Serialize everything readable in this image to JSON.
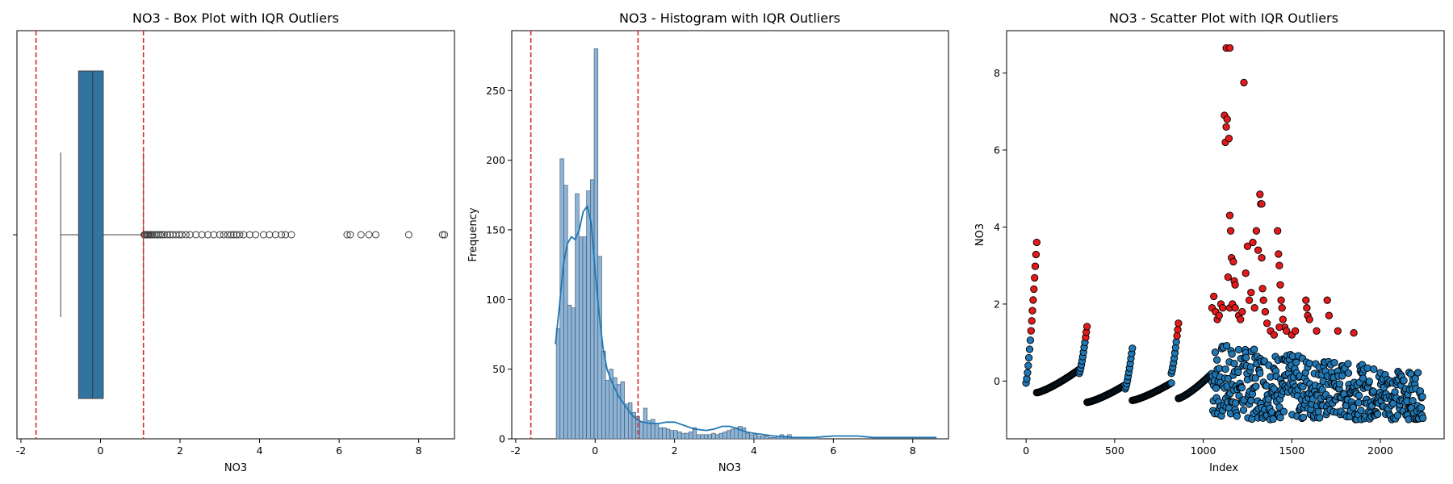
{
  "chart_data": [
    {
      "type": "box",
      "title": "NO3 - Box Plot with IQR Outliers",
      "xlabel": "NO3",
      "ylabel": "",
      "xlim": [
        -2.1,
        8.9
      ],
      "xticks": [
        -2,
        0,
        2,
        4,
        6,
        8
      ],
      "box": {
        "whisker_low": -1.0,
        "q1": -0.55,
        "median": -0.2,
        "q3": 0.07,
        "whisker_high": 1.08
      },
      "iqr_bounds": {
        "lower": -1.62,
        "upper": 1.08,
        "color": "#d62728"
      },
      "box_color": "#3274a1",
      "outliers": [
        1.1,
        1.12,
        1.15,
        1.18,
        1.2,
        1.23,
        1.27,
        1.3,
        1.35,
        1.4,
        1.45,
        1.5,
        1.55,
        1.6,
        1.68,
        1.75,
        1.82,
        1.9,
        1.98,
        2.05,
        2.15,
        2.25,
        2.4,
        2.55,
        2.7,
        2.85,
        3.0,
        3.1,
        3.2,
        3.28,
        3.35,
        3.42,
        3.5,
        3.6,
        3.75,
        3.9,
        4.1,
        4.25,
        4.4,
        4.55,
        4.65,
        4.8,
        6.2,
        6.28,
        6.55,
        6.75,
        6.92,
        7.75,
        8.6,
        8.65
      ]
    },
    {
      "type": "histogram",
      "title": "NO3 - Histogram with IQR Outliers",
      "xlabel": "NO3",
      "ylabel": "Frequency",
      "xlim": [
        -2.1,
        8.9
      ],
      "ylim": [
        0,
        293
      ],
      "xticks": [
        -2,
        0,
        2,
        4,
        6,
        8
      ],
      "yticks": [
        0,
        50,
        100,
        150,
        200,
        250
      ],
      "bin_start": -0.98,
      "bin_width": 0.0955,
      "counts": [
        79,
        201,
        182,
        96,
        94,
        176,
        145,
        145,
        178,
        186,
        280,
        131,
        63,
        42,
        50,
        44,
        39,
        41,
        25,
        26,
        19,
        16,
        12,
        22,
        13,
        14,
        11,
        8,
        8,
        7,
        6,
        6,
        5,
        4,
        4,
        5,
        8,
        3,
        3,
        3,
        3,
        4,
        3,
        4,
        5,
        6,
        7,
        8,
        9,
        8,
        4,
        3,
        3,
        2,
        2,
        2,
        1,
        1,
        2,
        3,
        2,
        3,
        1,
        1,
        1,
        1,
        1,
        1,
        1,
        0,
        0,
        0,
        0,
        0,
        0,
        0,
        0,
        0,
        0,
        0,
        0,
        0,
        0,
        0,
        0,
        0,
        0,
        0,
        0,
        0,
        0,
        0,
        0,
        0,
        0,
        0,
        0,
        0,
        0,
        0
      ],
      "kde": [
        [
          -1.0,
          68
        ],
        [
          -0.9,
          95
        ],
        [
          -0.8,
          125
        ],
        [
          -0.7,
          140
        ],
        [
          -0.6,
          145
        ],
        [
          -0.5,
          143
        ],
        [
          -0.4,
          150
        ],
        [
          -0.3,
          163
        ],
        [
          -0.2,
          167
        ],
        [
          -0.1,
          155
        ],
        [
          0.0,
          120
        ],
        [
          0.1,
          90
        ],
        [
          0.2,
          65
        ],
        [
          0.3,
          50
        ],
        [
          0.4,
          42
        ],
        [
          0.5,
          36
        ],
        [
          0.6,
          30
        ],
        [
          0.7,
          26
        ],
        [
          0.8,
          22
        ],
        [
          0.9,
          18
        ],
        [
          1.0,
          15
        ],
        [
          1.1,
          13
        ],
        [
          1.2,
          12
        ],
        [
          1.4,
          11
        ],
        [
          1.6,
          11
        ],
        [
          1.8,
          12
        ],
        [
          2.0,
          12
        ],
        [
          2.2,
          10
        ],
        [
          2.5,
          7
        ],
        [
          2.8,
          6
        ],
        [
          3.0,
          7
        ],
        [
          3.2,
          9
        ],
        [
          3.4,
          9
        ],
        [
          3.6,
          7
        ],
        [
          3.8,
          5
        ],
        [
          4.0,
          4
        ],
        [
          4.5,
          2
        ],
        [
          5.0,
          1
        ],
        [
          5.5,
          1
        ],
        [
          6.0,
          2
        ],
        [
          6.3,
          2
        ],
        [
          6.6,
          2
        ],
        [
          7.0,
          1
        ],
        [
          7.5,
          1
        ],
        [
          8.0,
          1
        ],
        [
          8.6,
          1
        ]
      ],
      "iqr_bounds": {
        "lower": -1.62,
        "upper": 1.08,
        "color": "#d62728"
      },
      "bar_color": "#8db4d6",
      "line_color": "#1f77b4"
    },
    {
      "type": "scatter",
      "title": "NO3 - Scatter Plot with IQR Outliers",
      "xlabel": "Index",
      "ylabel": "NO3",
      "xlim": [
        -110,
        2360
      ],
      "ylim": [
        -1.5,
        9.1
      ],
      "xticks": [
        0,
        500,
        1000,
        1500,
        2000
      ],
      "yticks": [
        0,
        2,
        4,
        6,
        8
      ],
      "threshold": 1.08,
      "normal_color": "#1f77b4",
      "outlier_color": "#e31a1c",
      "marker_edge": "#000000",
      "segments": [
        {
          "x_start": 0,
          "x_end": 60,
          "y_start": -0.05,
          "y_end": 3.6
        },
        {
          "x_start": 60,
          "x_end": 300,
          "y_start": -0.3,
          "y_end": 0.3
        },
        {
          "x_start": 300,
          "x_end": 345,
          "y_start": 0.2,
          "y_end": 1.45
        },
        {
          "x_start": 345,
          "x_end": 560,
          "y_start": -0.55,
          "y_end": -0.1
        },
        {
          "x_start": 560,
          "x_end": 600,
          "y_start": -0.2,
          "y_end": 0.85
        },
        {
          "x_start": 600,
          "x_end": 820,
          "y_start": -0.5,
          "y_end": -0.05
        },
        {
          "x_start": 820,
          "x_end": 860,
          "y_start": 0.2,
          "y_end": 1.5
        },
        {
          "x_start": 860,
          "x_end": 1050,
          "y_start": -0.45,
          "y_end": 0.2
        }
      ],
      "scatter_band": {
        "x_start": 1050,
        "x_end": 2240,
        "y_min": -1.0,
        "y_max_start": 1.0,
        "y_max_end": 0.2
      },
      "extra_outliers": [
        [
          1050,
          1.9
        ],
        [
          1060,
          2.2
        ],
        [
          1070,
          1.8
        ],
        [
          1080,
          1.6
        ],
        [
          1090,
          1.7
        ],
        [
          1100,
          2.0
        ],
        [
          1110,
          1.9
        ],
        [
          1120,
          6.9
        ],
        [
          1125,
          6.2
        ],
        [
          1130,
          6.6
        ],
        [
          1135,
          6.8
        ],
        [
          1130,
          8.65
        ],
        [
          1150,
          8.65
        ],
        [
          1145,
          6.3
        ],
        [
          1150,
          4.3
        ],
        [
          1155,
          3.9
        ],
        [
          1160,
          3.2
        ],
        [
          1170,
          3.1
        ],
        [
          1175,
          2.6
        ],
        [
          1180,
          2.5
        ],
        [
          1140,
          2.7
        ],
        [
          1150,
          1.9
        ],
        [
          1165,
          2.0
        ],
        [
          1180,
          1.9
        ],
        [
          1200,
          1.7
        ],
        [
          1210,
          1.6
        ],
        [
          1220,
          1.8
        ],
        [
          1230,
          7.75
        ],
        [
          1240,
          2.8
        ],
        [
          1250,
          3.5
        ],
        [
          1260,
          2.1
        ],
        [
          1270,
          2.3
        ],
        [
          1280,
          3.6
        ],
        [
          1290,
          1.9
        ],
        [
          1300,
          3.9
        ],
        [
          1310,
          3.4
        ],
        [
          1320,
          4.85
        ],
        [
          1325,
          4.6
        ],
        [
          1330,
          3.2
        ],
        [
          1335,
          2.4
        ],
        [
          1340,
          2.1
        ],
        [
          1350,
          1.8
        ],
        [
          1360,
          1.5
        ],
        [
          1380,
          1.3
        ],
        [
          1400,
          1.2
        ],
        [
          1420,
          3.9
        ],
        [
          1425,
          3.3
        ],
        [
          1430,
          3.0
        ],
        [
          1435,
          2.5
        ],
        [
          1440,
          2.1
        ],
        [
          1445,
          1.9
        ],
        [
          1450,
          1.6
        ],
        [
          1460,
          1.4
        ],
        [
          1470,
          1.3
        ],
        [
          1500,
          1.2
        ],
        [
          1520,
          1.3
        ],
        [
          1580,
          2.1
        ],
        [
          1585,
          1.9
        ],
        [
          1590,
          1.7
        ],
        [
          1600,
          1.6
        ],
        [
          1640,
          1.3
        ],
        [
          1700,
          2.1
        ],
        [
          1710,
          1.7
        ],
        [
          1760,
          1.3
        ],
        [
          1850,
          1.25
        ],
        [
          1330,
          4.6
        ],
        [
          1430,
          1.4
        ]
      ]
    }
  ]
}
